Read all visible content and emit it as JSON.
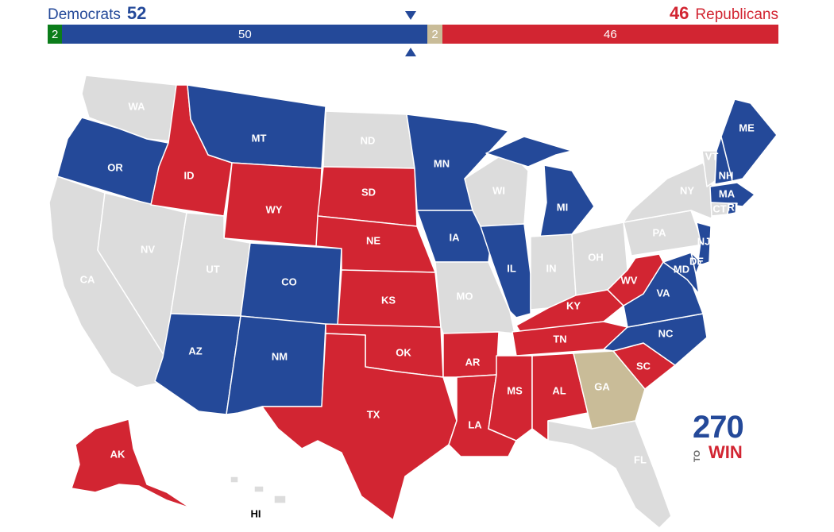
{
  "header": {
    "left_label": "Democrats",
    "left_count": "52",
    "right_count": "46",
    "right_label": "Republicans"
  },
  "bar": {
    "segments": [
      {
        "label": "2",
        "value": 2,
        "color": "#0b7d1a"
      },
      {
        "label": "50",
        "value": 50,
        "color": "#244999"
      },
      {
        "label": "2",
        "value": 2,
        "color": "#c9bc98"
      },
      {
        "label": "46",
        "value": 46,
        "color": "#d22532"
      }
    ]
  },
  "colors": {
    "dem": "#244999",
    "rep": "#d22532",
    "tossup": "#c9bc98",
    "none": "#dcdcdc",
    "border": "#ffffff"
  },
  "states": [
    {
      "abbr": "WA",
      "status": "none"
    },
    {
      "abbr": "OR",
      "status": "dem"
    },
    {
      "abbr": "CA",
      "status": "none"
    },
    {
      "abbr": "NV",
      "status": "none"
    },
    {
      "abbr": "ID",
      "status": "rep"
    },
    {
      "abbr": "MT",
      "status": "dem"
    },
    {
      "abbr": "WY",
      "status": "rep"
    },
    {
      "abbr": "UT",
      "status": "none"
    },
    {
      "abbr": "AZ",
      "status": "dem"
    },
    {
      "abbr": "CO",
      "status": "dem"
    },
    {
      "abbr": "NM",
      "status": "dem"
    },
    {
      "abbr": "ND",
      "status": "none"
    },
    {
      "abbr": "SD",
      "status": "rep"
    },
    {
      "abbr": "NE",
      "status": "rep"
    },
    {
      "abbr": "KS",
      "status": "rep"
    },
    {
      "abbr": "OK",
      "status": "rep"
    },
    {
      "abbr": "TX",
      "status": "rep"
    },
    {
      "abbr": "MN",
      "status": "dem"
    },
    {
      "abbr": "IA",
      "status": "dem"
    },
    {
      "abbr": "MO",
      "status": "none"
    },
    {
      "abbr": "AR",
      "status": "rep"
    },
    {
      "abbr": "LA",
      "status": "rep"
    },
    {
      "abbr": "WI",
      "status": "none"
    },
    {
      "abbr": "IL",
      "status": "dem"
    },
    {
      "abbr": "MI",
      "status": "dem"
    },
    {
      "abbr": "IN",
      "status": "none"
    },
    {
      "abbr": "OH",
      "status": "none"
    },
    {
      "abbr": "KY",
      "status": "rep"
    },
    {
      "abbr": "TN",
      "status": "rep"
    },
    {
      "abbr": "MS",
      "status": "rep"
    },
    {
      "abbr": "AL",
      "status": "rep"
    },
    {
      "abbr": "GA",
      "status": "tossup"
    },
    {
      "abbr": "FL",
      "status": "none"
    },
    {
      "abbr": "SC",
      "status": "rep"
    },
    {
      "abbr": "NC",
      "status": "dem"
    },
    {
      "abbr": "VA",
      "status": "dem"
    },
    {
      "abbr": "WV",
      "status": "rep"
    },
    {
      "abbr": "PA",
      "status": "none"
    },
    {
      "abbr": "NY",
      "status": "none"
    },
    {
      "abbr": "NJ",
      "status": "dem"
    },
    {
      "abbr": "DE",
      "status": "dem"
    },
    {
      "abbr": "MD",
      "status": "dem"
    },
    {
      "abbr": "VT",
      "status": "none"
    },
    {
      "abbr": "NH",
      "status": "dem"
    },
    {
      "abbr": "ME",
      "status": "dem"
    },
    {
      "abbr": "MA",
      "status": "dem"
    },
    {
      "abbr": "CT",
      "status": "none"
    },
    {
      "abbr": "RI",
      "status": "dem"
    },
    {
      "abbr": "AK",
      "status": "rep"
    },
    {
      "abbr": "HI",
      "status": "none"
    }
  ],
  "logo": {
    "number": "270",
    "to": "TO",
    "win": "WIN"
  }
}
